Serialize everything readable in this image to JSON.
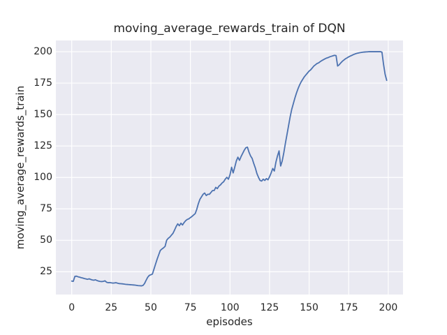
{
  "figure": {
    "title": "moving_average_rewards_train of DQN",
    "background_color": "#ffffff",
    "plot_background_color": "#eaeaf2",
    "grid_color": "#ffffff",
    "text_color": "#262626",
    "line_color": "#4c72b0"
  },
  "chart_data": {
    "type": "line",
    "title": "moving_average_rewards_train of DQN",
    "xlabel": "episodes",
    "ylabel": "moving_average_rewards_train",
    "legend": false,
    "grid": true,
    "xlim": [
      -10.0,
      209.3
    ],
    "ylim": [
      6.9,
      208.9
    ],
    "xticks": [
      0,
      25,
      50,
      75,
      100,
      125,
      150,
      175,
      200
    ],
    "yticks": [
      25,
      50,
      75,
      100,
      125,
      150,
      175,
      200
    ],
    "series": [
      {
        "name": "moving_average_rewards_train",
        "color": "#4c72b0",
        "x": [
          0,
          1,
          2,
          3,
          4,
          5,
          6,
          7,
          8,
          9,
          10,
          11,
          12,
          13,
          14,
          15,
          16,
          17,
          18,
          19,
          20,
          21,
          22,
          23,
          24,
          25,
          26,
          27,
          28,
          29,
          30,
          31,
          32,
          33,
          34,
          35,
          36,
          37,
          38,
          39,
          40,
          41,
          42,
          43,
          44,
          45,
          46,
          47,
          48,
          49,
          50,
          51,
          52,
          53,
          54,
          55,
          56,
          57,
          58,
          59,
          60,
          61,
          62,
          63,
          64,
          65,
          66,
          67,
          68,
          69,
          70,
          71,
          72,
          73,
          74,
          75,
          76,
          77,
          78,
          79,
          80,
          81,
          82,
          83,
          84,
          85,
          86,
          87,
          88,
          89,
          90,
          91,
          92,
          93,
          94,
          95,
          96,
          97,
          98,
          99,
          100,
          101,
          102,
          103,
          104,
          105,
          106,
          107,
          108,
          109,
          110,
          111,
          112,
          113,
          114,
          115,
          116,
          117,
          118,
          119,
          120,
          121,
          122,
          123,
          124,
          125,
          126,
          127,
          128,
          129,
          130,
          131,
          132,
          133,
          134,
          135,
          136,
          137,
          138,
          139,
          140,
          141,
          142,
          143,
          144,
          145,
          146,
          147,
          148,
          149,
          150,
          151,
          152,
          153,
          154,
          155,
          156,
          157,
          158,
          159,
          160,
          161,
          162,
          163,
          164,
          165,
          166,
          167,
          168,
          169,
          170,
          171,
          172,
          173,
          174,
          175,
          176,
          177,
          178,
          179,
          180,
          181,
          182,
          183,
          184,
          185,
          186,
          187,
          188,
          189,
          190,
          191,
          192,
          193,
          194,
          195,
          196,
          197,
          198,
          199
        ],
        "y": [
          17.6,
          17.4,
          21.3,
          21.5,
          21.0,
          20.7,
          20.3,
          20.0,
          19.6,
          19.3,
          19.0,
          19.4,
          18.9,
          18.5,
          18.3,
          18.6,
          18.0,
          17.6,
          17.3,
          17.2,
          17.4,
          17.8,
          16.7,
          16.3,
          16.4,
          16.2,
          16.0,
          16.1,
          16.3,
          15.9,
          15.6,
          15.5,
          15.4,
          15.2,
          15.0,
          14.9,
          14.8,
          14.7,
          14.6,
          14.5,
          14.4,
          14.2,
          14.0,
          13.9,
          13.8,
          14.1,
          15.6,
          18.2,
          20.6,
          22.1,
          22.6,
          23.2,
          27.2,
          31.2,
          35.1,
          38.6,
          42.0,
          43.1,
          44.0,
          45.2,
          50.1,
          51.6,
          52.6,
          54.1,
          55.6,
          58.2,
          61.0,
          63.1,
          61.6,
          63.6,
          62.2,
          64.1,
          65.6,
          66.6,
          67.1,
          68.1,
          69.0,
          70.1,
          71.2,
          74.6,
          79.1,
          82.6,
          84.6,
          86.6,
          87.6,
          85.6,
          86.6,
          86.6,
          88.1,
          89.6,
          89.6,
          92.1,
          91.1,
          93.1,
          94.1,
          95.6,
          96.6,
          98.6,
          100.1,
          98.6,
          102.1,
          108.1,
          103.6,
          108.1,
          113.1,
          116.1,
          113.6,
          116.6,
          119.1,
          121.6,
          123.6,
          124.1,
          120.1,
          117.1,
          115.1,
          111.1,
          107.6,
          103.1,
          100.1,
          97.6,
          97.1,
          98.6,
          97.6,
          99.1,
          98.1,
          100.6,
          103.6,
          107.1,
          105.1,
          112.1,
          117.1,
          121.1,
          109.1,
          113.1,
          119.6,
          127.1,
          134.1,
          141.1,
          148.1,
          154.1,
          158.6,
          163.1,
          167.1,
          170.6,
          173.6,
          176.1,
          178.1,
          180.1,
          181.6,
          183.1,
          184.6,
          185.6,
          187.1,
          188.6,
          189.6,
          190.6,
          191.1,
          192.1,
          192.9,
          193.6,
          194.3,
          194.9,
          195.3,
          195.9,
          196.3,
          196.7,
          197.1,
          196.9,
          188.6,
          189.6,
          191.1,
          192.4,
          193.4,
          194.4,
          195.1,
          195.9,
          196.5,
          197.1,
          197.7,
          198.2,
          198.6,
          198.9,
          199.2,
          199.4,
          199.6,
          199.7,
          199.8,
          199.9,
          200.0,
          200.0,
          200.0,
          200.0,
          200.0,
          200.0,
          200.0,
          200.0,
          199.6,
          190.0,
          182.0,
          177.2
        ]
      }
    ]
  }
}
